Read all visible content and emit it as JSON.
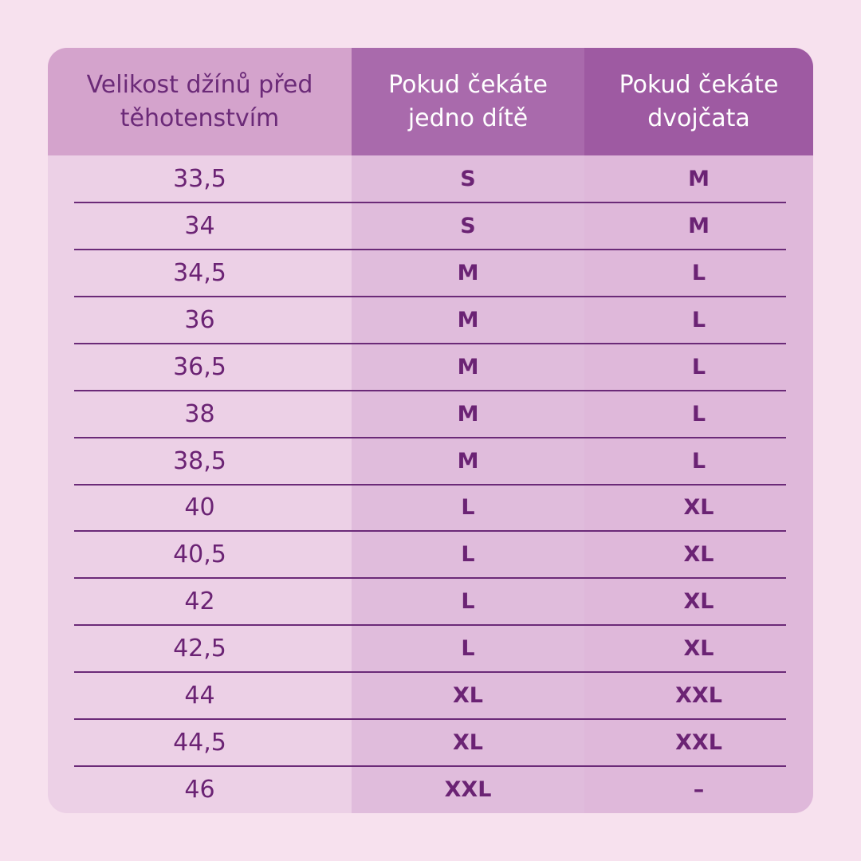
{
  "table": {
    "headers": [
      "Velikost džínů před těhotenstvím",
      "Pokud čekáte jedno dítě",
      "Pokud čekáte dvojčata"
    ],
    "rows": [
      [
        "33,5",
        "S",
        "M"
      ],
      [
        "34",
        "S",
        "M"
      ],
      [
        "34,5",
        "M",
        "L"
      ],
      [
        "36",
        "M",
        "L"
      ],
      [
        "36,5",
        "M",
        "L"
      ],
      [
        "38",
        "M",
        "L"
      ],
      [
        "38,5",
        "M",
        "L"
      ],
      [
        "40",
        "L",
        "XL"
      ],
      [
        "40,5",
        "L",
        "XL"
      ],
      [
        "42",
        "L",
        "XL"
      ],
      [
        "42,5",
        "L",
        "XL"
      ],
      [
        "44",
        "XL",
        "XXL"
      ],
      [
        "44,5",
        "XL",
        "XXL"
      ],
      [
        "46",
        "XXL",
        "–"
      ]
    ]
  }
}
